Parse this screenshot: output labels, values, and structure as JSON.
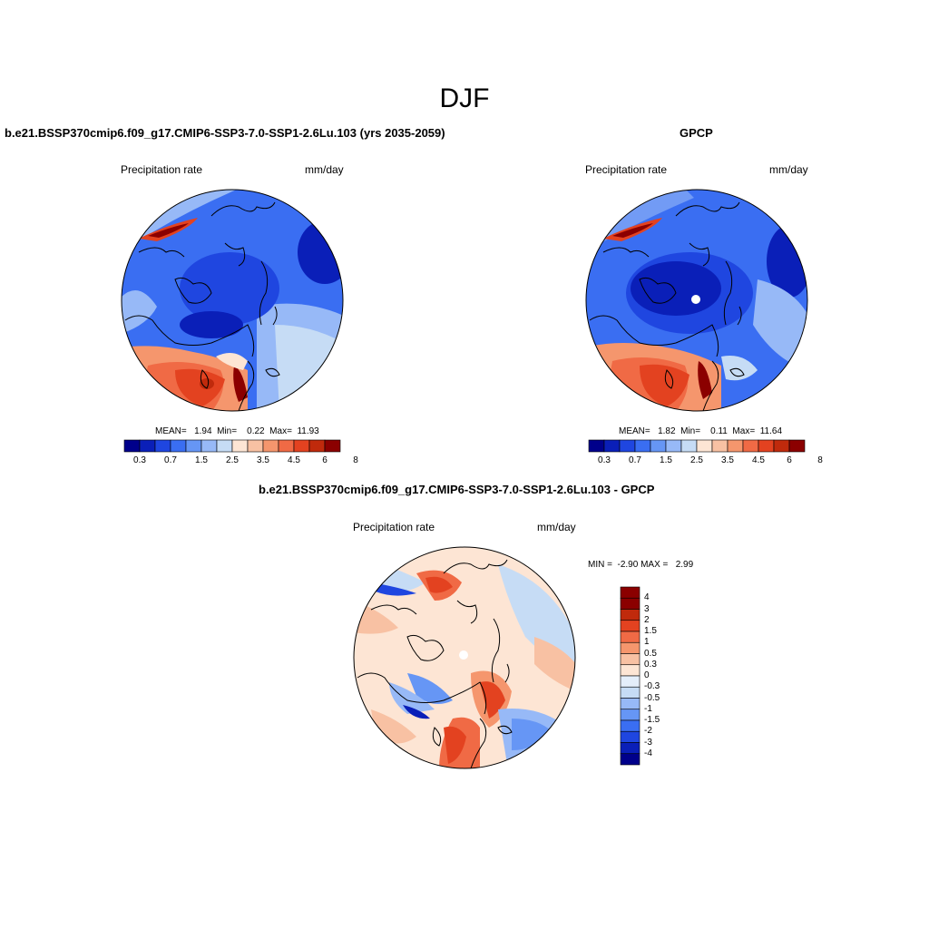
{
  "figure_title": "DJF",
  "panels": {
    "model": {
      "title": "b.e21.BSSP370cmip6.f09_g17.CMIP6-SSP3-7.0-SSP1-2.6Lu.103 (yrs 2035-2059)",
      "left_label": "Precipitation rate",
      "right_label": "mm/day",
      "stats": "MEAN=   1.94  Min=    0.22  Max=  11.93"
    },
    "obs": {
      "title": "GPCP",
      "left_label": "Precipitation rate",
      "right_label": "mm/day",
      "stats": "MEAN=   1.82  Min=    0.11  Max=  11.64"
    },
    "diff": {
      "title": "b.e21.BSSP370cmip6.f09_g17.CMIP6-SSP3-7.0-SSP1-2.6Lu.103 - GPCP",
      "left_label": "Precipitation rate",
      "right_label": "mm/day",
      "stats": "MIN =  -2.90 MAX =   2.99"
    }
  },
  "colorbars": {
    "abs": {
      "colors": [
        "#00008b",
        "#0a1fb8",
        "#1f46e0",
        "#3a6ef2",
        "#6696f5",
        "#97b9f7",
        "#c6dcf5",
        "#fde5d4",
        "#f8c1a3",
        "#f5966d",
        "#f06a45",
        "#e34220",
        "#c02a0c",
        "#8b0000"
      ],
      "ticks": [
        "0.3",
        "0.7",
        "1.5",
        "2.5",
        "3.5",
        "4.5",
        "6",
        "8"
      ]
    },
    "diff": {
      "colors": [
        "#00008b",
        "#0a1fb8",
        "#1f46e0",
        "#3a6ef2",
        "#6696f5",
        "#97b9f7",
        "#c6dcf5",
        "#e4eefa",
        "#fde5d4",
        "#f8c1a3",
        "#f5966d",
        "#f06a45",
        "#e34220",
        "#c02a0c",
        "#8b0000",
        "#8b0000"
      ],
      "ticks": [
        "4",
        "3",
        "2",
        "1.5",
        "1",
        "0.5",
        "0.3",
        "0",
        "-0.3",
        "-0.5",
        "-1",
        "-1.5",
        "-2",
        "-3",
        "-4"
      ]
    }
  },
  "map_colors": {
    "ocean_blue": "#3a6ef2",
    "deep_blue": "#1f46e0",
    "dark_blue": "#0a1fb8",
    "light_blue": "#97b9f7",
    "pale_blue": "#c6dcf5",
    "peach": "#fde5d4",
    "salmon": "#f5966d",
    "orange_red": "#f06a45",
    "red": "#e34220",
    "dark_red": "#c02a0c"
  }
}
